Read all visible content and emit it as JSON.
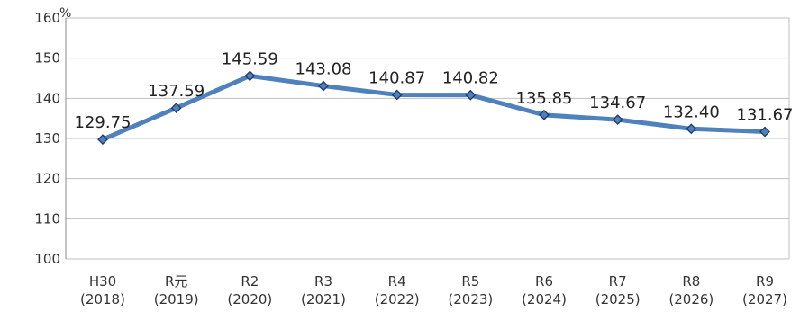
{
  "chart_data": {
    "type": "line",
    "ylabel": "",
    "y_unit": "%",
    "ylim": [
      100,
      160
    ],
    "yticks": [
      100,
      110,
      120,
      130,
      140,
      150,
      160
    ],
    "grid": true,
    "categories": [
      {
        "era": "H30",
        "year": "(2018)"
      },
      {
        "era": "R元",
        "year": "(2019)"
      },
      {
        "era": "R2",
        "year": "(2020)"
      },
      {
        "era": "R3",
        "year": "(2021)"
      },
      {
        "era": "R4",
        "year": "(2022)"
      },
      {
        "era": "R5",
        "year": "(2023)"
      },
      {
        "era": "R6",
        "year": "(2024)"
      },
      {
        "era": "R7",
        "year": "(2025)"
      },
      {
        "era": "R8",
        "year": "(2026)"
      },
      {
        "era": "R9",
        "year": "(2027)"
      }
    ],
    "series": [
      {
        "values": [
          129.75,
          137.59,
          145.59,
          143.08,
          140.87,
          140.82,
          135.85,
          134.67,
          132.4,
          131.67
        ],
        "labels": [
          "129.75",
          "137.59",
          "145.59",
          "143.08",
          "140.87",
          "140.82",
          "135.85",
          "134.67",
          "132.40",
          "131.67"
        ]
      }
    ],
    "colors": {
      "line": "#4f81bd",
      "marker_fill": "#4f81bd",
      "marker_stroke": "#1f3864",
      "grid": "#bfbfbf",
      "axis": "#888888"
    }
  }
}
